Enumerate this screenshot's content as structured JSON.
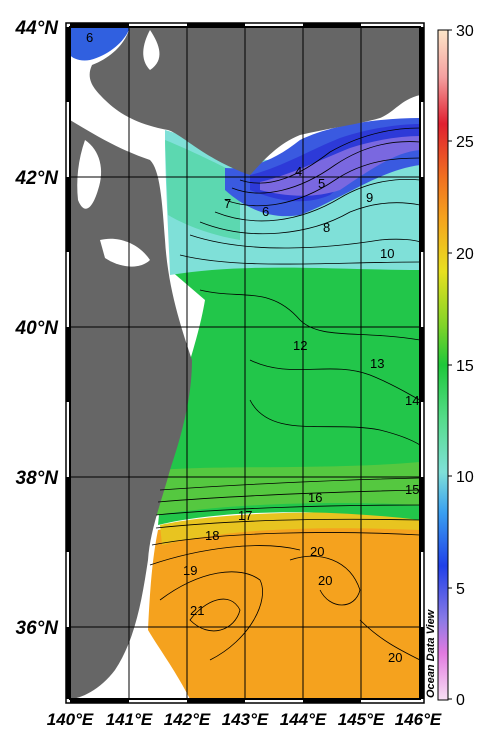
{
  "map": {
    "lat_labels": [
      "44°N",
      "42°N",
      "40°N",
      "38°N",
      "36°N"
    ],
    "lon_labels": [
      "140°E",
      "141°E",
      "142°E",
      "143°E",
      "144°E",
      "145°E",
      "146°E"
    ],
    "colorbar": {
      "ticks": [
        "30",
        "25",
        "20",
        "15",
        "10",
        "5",
        "0"
      ],
      "min": 0,
      "max": 30
    },
    "contour_labels": [
      "6",
      "4",
      "5",
      "7",
      "6",
      "9",
      "8",
      "10",
      "12",
      "13",
      "14",
      "16",
      "15",
      "17",
      "18",
      "19",
      "20",
      "20",
      "21",
      "20"
    ],
    "watermark": "Ocean Data View",
    "colors": {
      "land": "#666666",
      "frame": "#000000",
      "low": "#3a3adc",
      "mid": "#22c64a",
      "high": "#f5a21e"
    }
  }
}
